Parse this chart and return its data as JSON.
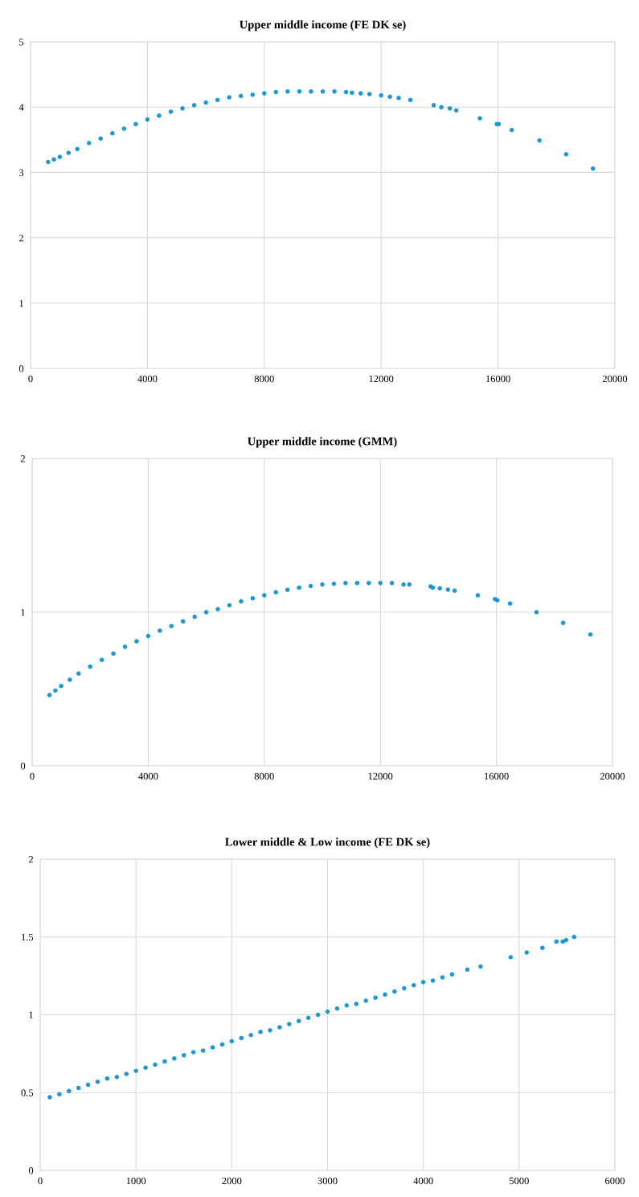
{
  "chart_data": [
    {
      "type": "scatter",
      "title": "Upper middle income (FE DK se)",
      "marker": "circle",
      "grid": true,
      "xlim": [
        0,
        20000
      ],
      "xticks": [
        0,
        4000,
        8000,
        12000,
        16000,
        20000
      ],
      "ylim": [
        0,
        5
      ],
      "yticks": [
        0,
        1,
        2,
        3,
        4,
        5
      ],
      "series": [
        {
          "color": "#1b98d5",
          "x": [
            600,
            800,
            1000,
            1300,
            1600,
            2000,
            2400,
            2800,
            3200,
            3600,
            4000,
            4400,
            4800,
            5200,
            5600,
            6000,
            6400,
            6800,
            7200,
            7600,
            8000,
            8400,
            8800,
            9200,
            9600,
            10000,
            10400,
            10800,
            11000,
            11300,
            11600,
            12000,
            12300,
            12600,
            13000,
            13800,
            14060,
            14350,
            14570,
            15380,
            15960,
            16020,
            16470,
            17420,
            18330,
            19250
          ],
          "values": [
            3.16,
            3.2,
            3.24,
            3.3,
            3.36,
            3.45,
            3.52,
            3.6,
            3.67,
            3.74,
            3.81,
            3.87,
            3.93,
            3.98,
            4.03,
            4.07,
            4.11,
            4.15,
            4.17,
            4.19,
            4.21,
            4.23,
            4.24,
            4.24,
            4.24,
            4.24,
            4.24,
            4.23,
            4.22,
            4.21,
            4.2,
            4.18,
            4.16,
            4.14,
            4.11,
            4.03,
            4.0,
            3.98,
            3.95,
            3.83,
            3.74,
            3.74,
            3.65,
            3.49,
            3.28,
            3.06
          ]
        }
      ]
    },
    {
      "type": "scatter",
      "title": "Upper middle income (GMM)",
      "marker": "circle",
      "grid": true,
      "xlim": [
        0,
        20000
      ],
      "xticks": [
        0,
        4000,
        8000,
        12000,
        16000,
        20000
      ],
      "ylim": [
        0,
        2
      ],
      "yticks": [
        0,
        1,
        2
      ],
      "series": [
        {
          "color": "#1b98d5",
          "x": [
            600,
            800,
            1000,
            1300,
            1600,
            2000,
            2400,
            2800,
            3200,
            3600,
            4000,
            4400,
            4800,
            5200,
            5600,
            6000,
            6400,
            6800,
            7200,
            7600,
            8000,
            8400,
            8800,
            9200,
            9600,
            10000,
            10400,
            10800,
            11200,
            11600,
            12000,
            12400,
            12800,
            13000,
            13730,
            13810,
            14050,
            14330,
            14560,
            15360,
            15950,
            16030,
            16470,
            17380,
            18300,
            19240
          ],
          "values": [
            0.46,
            0.49,
            0.52,
            0.56,
            0.6,
            0.645,
            0.69,
            0.73,
            0.775,
            0.81,
            0.845,
            0.88,
            0.91,
            0.94,
            0.97,
            1.0,
            1.02,
            1.045,
            1.07,
            1.09,
            1.11,
            1.13,
            1.145,
            1.16,
            1.17,
            1.18,
            1.185,
            1.19,
            1.19,
            1.19,
            1.19,
            1.19,
            1.18,
            1.18,
            1.168,
            1.16,
            1.155,
            1.147,
            1.14,
            1.11,
            1.085,
            1.077,
            1.056,
            1.0,
            0.93,
            0.855
          ]
        }
      ]
    },
    {
      "type": "scatter",
      "title": "Lower middle & Low income (FE DK se)",
      "marker": "circle",
      "grid": true,
      "xlim": [
        0,
        6000
      ],
      "xticks": [
        0,
        1000,
        2000,
        3000,
        4000,
        5000,
        6000
      ],
      "ylim": [
        0,
        2
      ],
      "yticks": [
        0,
        0.5,
        1,
        1.5,
        2
      ],
      "series": [
        {
          "color": "#1b98d5",
          "x": [
            100,
            200,
            300,
            400,
            500,
            600,
            700,
            800,
            900,
            1000,
            1100,
            1200,
            1300,
            1400,
            1500,
            1600,
            1700,
            1800,
            1900,
            2000,
            2100,
            2200,
            2300,
            2400,
            2500,
            2600,
            2700,
            2800,
            2900,
            3000,
            3100,
            3200,
            3300,
            3400,
            3500,
            3600,
            3700,
            3800,
            3900,
            4000,
            4100,
            4200,
            4300,
            4460,
            4598,
            4912,
            5080,
            5243,
            5390,
            5456,
            5490,
            5574
          ],
          "values": [
            0.47,
            0.49,
            0.51,
            0.53,
            0.55,
            0.57,
            0.59,
            0.6,
            0.62,
            0.64,
            0.66,
            0.68,
            0.7,
            0.72,
            0.74,
            0.76,
            0.77,
            0.79,
            0.81,
            0.83,
            0.85,
            0.87,
            0.89,
            0.9,
            0.92,
            0.94,
            0.96,
            0.98,
            1.0,
            1.02,
            1.04,
            1.06,
            1.07,
            1.09,
            1.11,
            1.13,
            1.15,
            1.17,
            1.19,
            1.21,
            1.22,
            1.24,
            1.26,
            1.29,
            1.31,
            1.37,
            1.4,
            1.43,
            1.47,
            1.47,
            1.48,
            1.5
          ]
        }
      ]
    }
  ]
}
